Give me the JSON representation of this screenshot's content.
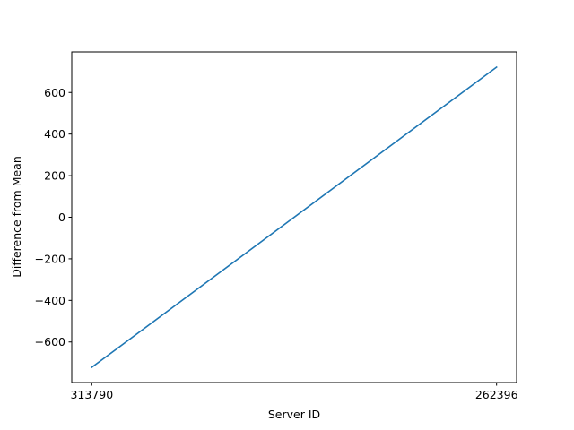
{
  "chart_data": {
    "type": "line",
    "xlabel": "Server ID",
    "ylabel": "Difference from Mean",
    "categories": [
      "313790",
      "262396"
    ],
    "series": [
      {
        "values": [
          -722,
          722
        ]
      }
    ],
    "ylim": [
      -795,
      795
    ],
    "yticks": [
      -600,
      -400,
      -200,
      0,
      200,
      400,
      600
    ],
    "ytick_labels": [
      "−600",
      "−400",
      "−200",
      "0",
      "200",
      "400",
      "600"
    ],
    "grid": false,
    "colors": {
      "line": "#1f77b4",
      "axes": "#000000"
    }
  }
}
